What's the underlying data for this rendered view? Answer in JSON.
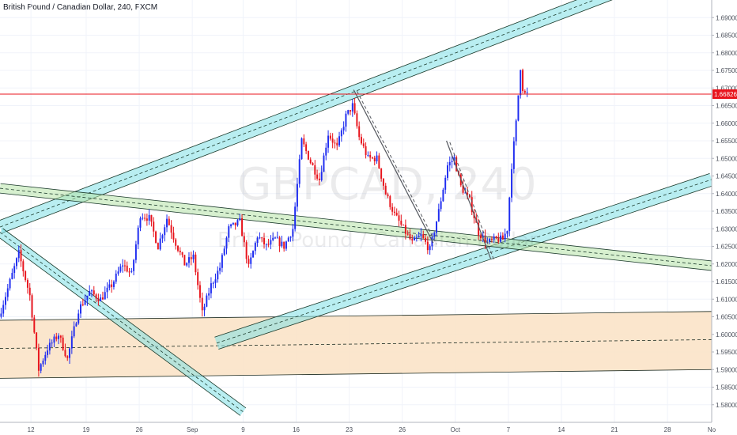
{
  "header": {
    "title": "British Pound / Canadian Dollar, 240, FXCM"
  },
  "watermark": {
    "symbol": "GBPCAD, 240",
    "name": "British Pound / Canadian Dollar"
  },
  "colors": {
    "up": "#1e2cf0",
    "down": "#e8141c",
    "channel_fill": "#7fe0e6",
    "wedge_fill": "#b7e3a8",
    "zone_fill": "#fbe3c8",
    "price_line": "#e8141c",
    "grid": "#f0f3fa",
    "axis_text": "#4a4f5a"
  },
  "chart_data": {
    "type": "candlestick",
    "symbol": "GBPCAD",
    "interval": "240",
    "current_price": "1.66826",
    "y_axis": {
      "min": 1.575,
      "max": 1.695,
      "tick_labels": [
        "1.69000",
        "1.68500",
        "1.68000",
        "1.67500",
        "1.67000",
        "1.66500",
        "1.66000",
        "1.65500",
        "1.65000",
        "1.64500",
        "1.64000",
        "1.63500",
        "1.63000",
        "1.62500",
        "1.62000",
        "1.61500",
        "1.61000",
        "1.60500",
        "1.60000",
        "1.59500",
        "1.59000",
        "1.58500",
        "1.58000"
      ],
      "tick_values": [
        1.69,
        1.685,
        1.68,
        1.675,
        1.67,
        1.665,
        1.66,
        1.655,
        1.65,
        1.645,
        1.64,
        1.635,
        1.63,
        1.625,
        1.62,
        1.615,
        1.61,
        1.605,
        1.6,
        1.595,
        1.59,
        1.585,
        1.58
      ]
    },
    "x_axis": {
      "tick_labels": [
        "12",
        "19",
        "26",
        "Sep",
        "9",
        "16",
        "23",
        "26",
        "Oct",
        "7",
        "14",
        "21",
        "28",
        "No"
      ],
      "tick_bars": [
        14,
        39,
        63,
        87,
        110,
        134,
        158,
        182,
        206,
        230,
        254,
        278,
        302,
        322
      ],
      "bar_count": 322
    },
    "price_path": [
      [
        0,
        1.605
      ],
      [
        4,
        1.613
      ],
      [
        9,
        1.623
      ],
      [
        14,
        1.611
      ],
      [
        18,
        1.59
      ],
      [
        22,
        1.596
      ],
      [
        27,
        1.6
      ],
      [
        31,
        1.593
      ],
      [
        36,
        1.607
      ],
      [
        41,
        1.612
      ],
      [
        46,
        1.61
      ],
      [
        51,
        1.614
      ],
      [
        56,
        1.62
      ],
      [
        60,
        1.617
      ],
      [
        64,
        1.634
      ],
      [
        68,
        1.633
      ],
      [
        72,
        1.625
      ],
      [
        76,
        1.633
      ],
      [
        80,
        1.626
      ],
      [
        84,
        1.62
      ],
      [
        88,
        1.622
      ],
      [
        92,
        1.606
      ],
      [
        96,
        1.614
      ],
      [
        100,
        1.619
      ],
      [
        104,
        1.63
      ],
      [
        109,
        1.632
      ],
      [
        113,
        1.619
      ],
      [
        117,
        1.628
      ],
      [
        121,
        1.625
      ],
      [
        125,
        1.627
      ],
      [
        129,
        1.625
      ],
      [
        133,
        1.63
      ],
      [
        137,
        1.655
      ],
      [
        141,
        1.649
      ],
      [
        145,
        1.644
      ],
      [
        149,
        1.657
      ],
      [
        153,
        1.653
      ],
      [
        157,
        1.662
      ],
      [
        160,
        1.665
      ],
      [
        163,
        1.656
      ],
      [
        167,
        1.65
      ],
      [
        171,
        1.65
      ],
      [
        175,
        1.64
      ],
      [
        179,
        1.634
      ],
      [
        183,
        1.63
      ],
      [
        187,
        1.626
      ],
      [
        191,
        1.628
      ],
      [
        195,
        1.624
      ],
      [
        199,
        1.635
      ],
      [
        203,
        1.648
      ],
      [
        206,
        1.65
      ],
      [
        209,
        1.642
      ],
      [
        213,
        1.638
      ],
      [
        217,
        1.629
      ],
      [
        221,
        1.626
      ],
      [
        225,
        1.627
      ],
      [
        228,
        1.627
      ],
      [
        230,
        1.63
      ],
      [
        232,
        1.648
      ],
      [
        234,
        1.66
      ],
      [
        236,
        1.676
      ],
      [
        237,
        1.67
      ],
      [
        238,
        1.6683
      ]
    ],
    "drawings": {
      "channel_upper_center": [
        [
          0,
          1.6305
        ],
        [
          300,
          1.7025
        ]
      ],
      "channel_lower_center": [
        [
          98,
          1.5975
        ],
        [
          322,
          1.644
        ]
      ],
      "wedge_center": [
        [
          0,
          1.6415
        ],
        [
          322,
          1.6195
        ]
      ],
      "diag_channel_center": [
        [
          0,
          1.629
        ],
        [
          110,
          1.578
        ]
      ],
      "zone_top": [
        [
          0,
          1.604
        ],
        [
          322,
          1.6065
        ]
      ],
      "zone_bottom": [
        [
          0,
          1.5875
        ],
        [
          322,
          1.59
        ]
      ],
      "zone_mid": [
        [
          0,
          1.596
        ],
        [
          322,
          1.5985
        ]
      ],
      "trend_line_1": [
        [
          160,
          1.6695
        ],
        [
          196,
          1.626
        ]
      ],
      "trend_line_2": [
        [
          202,
          1.655
        ],
        [
          222,
          1.6215
        ]
      ]
    }
  }
}
